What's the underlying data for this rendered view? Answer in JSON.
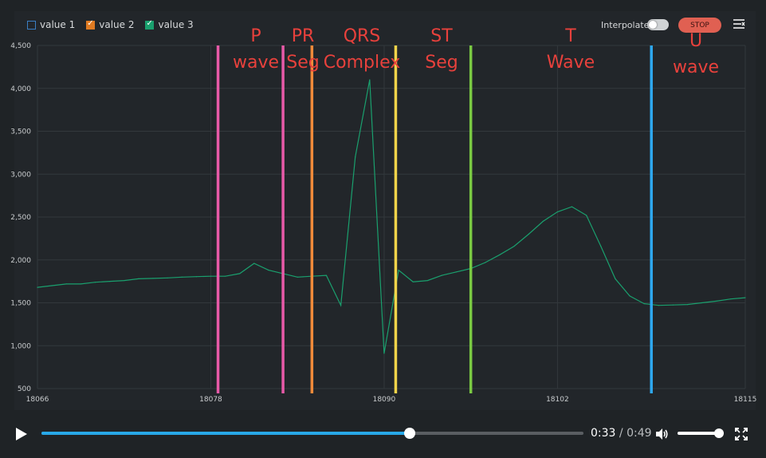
{
  "legend": [
    {
      "label": "value 1",
      "checked": false,
      "color": "#3b7fc4"
    },
    {
      "label": "value 2",
      "checked": true,
      "color": "#e07b22"
    },
    {
      "label": "value 3",
      "checked": true,
      "color": "#1aa06e"
    }
  ],
  "toolbar": {
    "interpolate_label": "Interpolate",
    "interpolate_on": false,
    "stop_label": "STOP",
    "menu_icon": "list-settings-icon"
  },
  "annotations": [
    {
      "text": "P\nwave",
      "color": "#e8413c"
    },
    {
      "text": "PR\nSeg",
      "color": "#e8413c"
    },
    {
      "text": "QRS\nComplex",
      "color": "#e8413c"
    },
    {
      "text": "ST\nSeg",
      "color": "#e8413c"
    },
    {
      "text": "T\nWave",
      "color": "#e8413c"
    },
    {
      "text": "U\nwave",
      "color": "#e8413c"
    }
  ],
  "marker_lines": [
    {
      "x": 18078.5,
      "color": "#e85aa8"
    },
    {
      "x": 18083,
      "color": "#e85aa8"
    },
    {
      "x": 18085,
      "color": "#f08a3a"
    },
    {
      "x": 18090.8,
      "color": "#f2d44a"
    },
    {
      "x": 18096,
      "color": "#7ac943"
    },
    {
      "x": 18108.5,
      "color": "#2ea8f0"
    }
  ],
  "chart_data": {
    "type": "line",
    "title": "",
    "xlabel": "",
    "ylabel": "",
    "xlim": [
      18066,
      18115
    ],
    "ylim": [
      500,
      4500
    ],
    "x_ticks": [
      "18066",
      "18078",
      "18090",
      "18102",
      "18115"
    ],
    "x_tick_values": [
      18066,
      18078,
      18090,
      18102,
      18115
    ],
    "y_ticks": [
      "500",
      "1,000",
      "1,500",
      "2,000",
      "2,500",
      "3,000",
      "3,500",
      "4,000",
      "4,500"
    ],
    "y_tick_values": [
      500,
      1000,
      1500,
      2000,
      2500,
      3000,
      3500,
      4000,
      4500
    ],
    "grid": true,
    "series": [
      {
        "name": "value 3",
        "color": "#1aa06e",
        "x": [
          18066,
          18067,
          18068,
          18069,
          18070,
          18071,
          18072,
          18073,
          18074,
          18075,
          18076,
          18077,
          18078,
          18079,
          18080,
          18081,
          18082,
          18083,
          18084,
          18085,
          18086,
          18087,
          18088,
          18089,
          18090,
          18091,
          18092,
          18093,
          18094,
          18095,
          18096,
          18097,
          18098,
          18099,
          18100,
          18101,
          18102,
          18103,
          18104,
          18105,
          18106,
          18107,
          18108,
          18109,
          18110,
          18111,
          18112,
          18113,
          18114,
          18115
        ],
        "values": [
          1680,
          1700,
          1720,
          1720,
          1740,
          1750,
          1760,
          1780,
          1785,
          1790,
          1800,
          1805,
          1810,
          1810,
          1840,
          1960,
          1880,
          1840,
          1800,
          1810,
          1820,
          1470,
          3200,
          4100,
          910,
          1880,
          1745,
          1760,
          1820,
          1860,
          1900,
          1970,
          2060,
          2160,
          2300,
          2450,
          2560,
          2620,
          2520,
          2160,
          1780,
          1580,
          1490,
          1470,
          1475,
          1480,
          1500,
          1520,
          1545,
          1560
        ]
      }
    ]
  },
  "player": {
    "current_time": "0:33",
    "separator": "/",
    "duration": "0:49",
    "progress": 0.68,
    "volume": 1.0,
    "play_icon": "play-icon",
    "volume_icon": "volume-icon",
    "fullscreen_icon": "fullscreen-icon"
  }
}
